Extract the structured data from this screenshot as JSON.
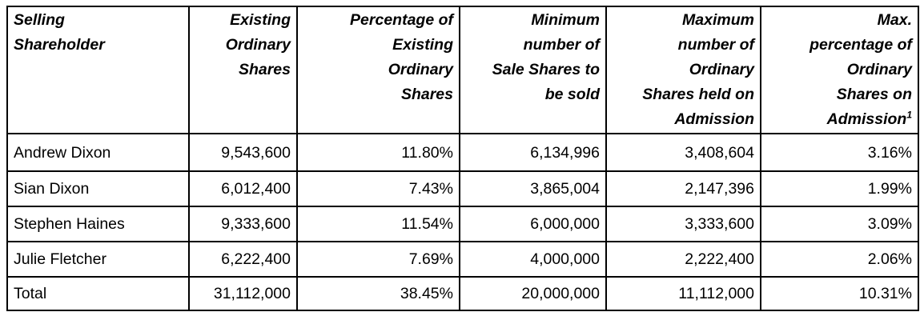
{
  "table": {
    "headers": [
      {
        "text": "Selling\nShareholder",
        "sup": ""
      },
      {
        "text": "Existing\nOrdinary\nShares",
        "sup": ""
      },
      {
        "text": "Percentage of\nExisting\nOrdinary\nShares",
        "sup": ""
      },
      {
        "text": "Minimum\nnumber of\nSale Shares to\nbe sold",
        "sup": ""
      },
      {
        "text": "Maximum\nnumber of\nOrdinary\nShares held on\nAdmission",
        "sup": ""
      },
      {
        "text": "Max.\npercentage of\nOrdinary\nShares on\nAdmission",
        "sup": "1"
      }
    ],
    "rows": [
      [
        "Andrew Dixon",
        "9,543,600",
        "11.80%",
        "6,134,996",
        "3,408,604",
        "3.16%"
      ],
      [
        "Sian Dixon",
        "6,012,400",
        "7.43%",
        "3,865,004",
        "2,147,396",
        "1.99%"
      ],
      [
        "Stephen Haines",
        "9,333,600",
        "11.54%",
        "6,000,000",
        "3,333,600",
        "3.09%"
      ],
      [
        "Julie Fletcher",
        "6,222,400",
        "7.69%",
        "4,000,000",
        "2,222,400",
        "2.06%"
      ],
      [
        "Total",
        "31,112,000",
        "38.45%",
        "20,000,000",
        "11,112,000",
        "10.31%"
      ]
    ]
  }
}
